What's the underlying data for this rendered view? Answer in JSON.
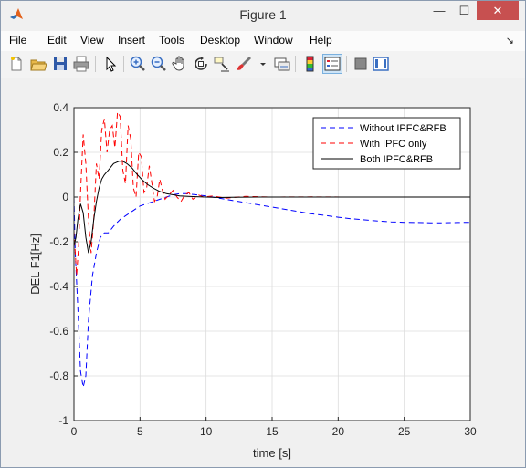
{
  "window": {
    "title": "Figure 1",
    "minimize_glyph": "—",
    "maximize_glyph": "☐",
    "close_glyph": "✕"
  },
  "menu": [
    "File",
    "Edit",
    "View",
    "Insert",
    "Tools",
    "Desktop",
    "Window",
    "Help"
  ],
  "menu_dock_glyph": "↘",
  "toolbar": [
    "new-figure-icon",
    "open-file-icon",
    "save-icon",
    "print-icon",
    "pointer-icon",
    "zoom-in-icon",
    "zoom-out-icon",
    "pan-hand-icon",
    "rotate-3d-icon",
    "data-cursor-icon",
    "brush-icon",
    "brush-dropdown-icon",
    "link-plot-icon",
    "colorbar-icon",
    "legend-icon",
    "hide-plot-tools-icon",
    "show-plot-tools-icon"
  ],
  "colors": {
    "blue": "#0000ff",
    "red": "#ff0000",
    "black": "#000000",
    "grid": "#dcdcdc"
  },
  "chart_data": {
    "type": "line",
    "xlabel": "time [s]",
    "ylabel": "DEL F1[Hz]",
    "xlim": [
      0,
      30
    ],
    "ylim": [
      -1,
      0.4
    ],
    "xticks": [
      0,
      5,
      10,
      15,
      20,
      25,
      30
    ],
    "yticks": [
      -1,
      -0.8,
      -0.6,
      -0.4,
      -0.2,
      0,
      0.2,
      0.4
    ],
    "grid": true,
    "legend_position": "top-right",
    "series": [
      {
        "name": "Without IPFC&RFB",
        "color": "#0000ff",
        "style": "dashed",
        "x": [
          0,
          0.1,
          0.3,
          0.5,
          0.7,
          0.9,
          1.1,
          1.4,
          1.7,
          2.0,
          2.3,
          2.6,
          3.0,
          3.5,
          4.0,
          4.5,
          5.0,
          5.5,
          6.0,
          6.5,
          7.0,
          7.5,
          8.0,
          8.5,
          9.0,
          10.0,
          11.0,
          12.0,
          13.0,
          14.0,
          15.0,
          16.0,
          17.0,
          18.0,
          19.0,
          20.0,
          21.0,
          22.0,
          23.0,
          24.0,
          25.0,
          26.0,
          27.0,
          28.0,
          29.0,
          30.0
        ],
        "y": [
          0,
          -0.25,
          -0.5,
          -0.78,
          -0.85,
          -0.8,
          -0.55,
          -0.35,
          -0.25,
          -0.18,
          -0.16,
          -0.16,
          -0.13,
          -0.1,
          -0.08,
          -0.06,
          -0.04,
          -0.03,
          -0.02,
          -0.01,
          0.0,
          0.01,
          0.015,
          0.015,
          0.012,
          0.005,
          -0.005,
          -0.015,
          -0.025,
          -0.035,
          -0.045,
          -0.055,
          -0.065,
          -0.075,
          -0.082,
          -0.09,
          -0.097,
          -0.102,
          -0.107,
          -0.111,
          -0.113,
          -0.114,
          -0.115,
          -0.115,
          -0.114,
          -0.113
        ]
      },
      {
        "name": "With IPFC only",
        "color": "#ff0000",
        "style": "dashed",
        "x": [
          0,
          0.2,
          0.35,
          0.5,
          0.7,
          0.9,
          1.1,
          1.3,
          1.5,
          1.7,
          1.9,
          2.1,
          2.3,
          2.5,
          2.7,
          2.9,
          3.1,
          3.3,
          3.5,
          3.7,
          3.9,
          4.1,
          4.3,
          4.5,
          4.7,
          4.9,
          5.1,
          5.3,
          5.5,
          5.7,
          5.9,
          6.1,
          6.3,
          6.5,
          6.7,
          6.9,
          7.2,
          7.5,
          7.8,
          8.1,
          8.4,
          8.7,
          9.0,
          9.4,
          9.8,
          10.5,
          11.5,
          13.0,
          15.0,
          18.0,
          21.0,
          24.0
        ],
        "y": [
          -0.15,
          -0.35,
          -0.22,
          0.02,
          0.28,
          0.15,
          -0.1,
          -0.25,
          -0.1,
          0.15,
          0.08,
          0.3,
          0.35,
          0.2,
          0.3,
          0.32,
          0.22,
          0.38,
          0.36,
          0.12,
          0.06,
          0.32,
          0.26,
          0.04,
          0.0,
          0.2,
          0.18,
          0.02,
          0.04,
          0.14,
          0.06,
          -0.02,
          0.0,
          0.08,
          0.03,
          -0.01,
          0.01,
          0.03,
          0.0,
          -0.02,
          0.01,
          0.02,
          -0.01,
          0.01,
          0.0,
          0.005,
          -0.005,
          0.003,
          0.0,
          0.001,
          0.0,
          0.0
        ]
      },
      {
        "name": "Both IPFC&RFB",
        "color": "#000000",
        "style": "solid",
        "x": [
          0,
          0.15,
          0.3,
          0.5,
          0.7,
          0.9,
          1.1,
          1.3,
          1.5,
          1.7,
          1.9,
          2.1,
          2.3,
          2.6,
          3.0,
          3.4,
          3.7,
          4.0,
          4.4,
          4.8,
          5.2,
          5.6,
          6.0,
          6.5,
          7.0,
          7.5,
          8.0,
          9.0,
          10.0,
          11.0,
          12.0,
          14.0,
          16.0,
          20.0,
          25.0,
          30.0
        ],
        "y": [
          -0.22,
          -0.18,
          -0.1,
          -0.03,
          -0.07,
          -0.18,
          -0.25,
          -0.2,
          -0.1,
          -0.02,
          0.04,
          0.08,
          0.1,
          0.12,
          0.15,
          0.16,
          0.16,
          0.15,
          0.13,
          0.1,
          0.075,
          0.055,
          0.04,
          0.025,
          0.015,
          0.01,
          0.005,
          0.002,
          0.0,
          -0.002,
          -0.001,
          0.0,
          0.0,
          0.0,
          0.0,
          0.0
        ]
      }
    ]
  }
}
